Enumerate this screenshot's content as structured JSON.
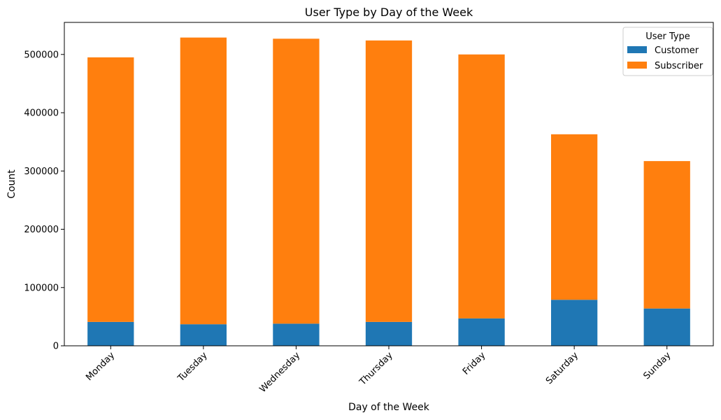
{
  "chart_data": {
    "type": "bar",
    "stacked": true,
    "title": "User Type by Day of the Week",
    "xlabel": "Day of the Week",
    "ylabel": "Count",
    "categories": [
      "Monday",
      "Tuesday",
      "Wednesday",
      "Thursday",
      "Friday",
      "Saturday",
      "Sunday"
    ],
    "series": [
      {
        "name": "Customer",
        "color": "#1f77b4",
        "values": [
          41000,
          37000,
          38000,
          41000,
          47000,
          79000,
          64000
        ]
      },
      {
        "name": "Subscriber",
        "color": "#ff7f0e",
        "values": [
          454000,
          492000,
          489000,
          483000,
          453000,
          284000,
          253000
        ]
      }
    ],
    "ylim": [
      0,
      555000
    ],
    "yticks": [
      0,
      100000,
      200000,
      300000,
      400000,
      500000
    ],
    "ytick_labels": [
      "0",
      "100000",
      "200000",
      "300000",
      "400000",
      "500000"
    ],
    "grid": false,
    "legend": {
      "title": "User Type",
      "placement": "top-right"
    }
  }
}
